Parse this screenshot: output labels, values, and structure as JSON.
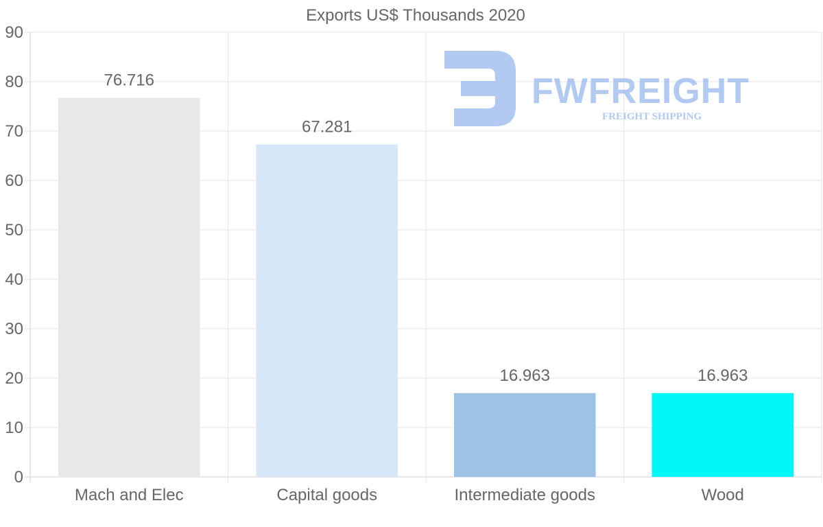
{
  "chart_data": {
    "type": "bar",
    "title": "Exports US$ Thousands 2020",
    "categories": [
      "Mach and Elec",
      "Capital goods",
      "Intermediate goods",
      "Wood"
    ],
    "values": [
      76.716,
      67.281,
      16.963,
      16.963
    ],
    "value_labels": [
      "76.716",
      "67.281",
      "16.963",
      "16.963"
    ],
    "colors": [
      "#e8e8e8",
      "#d6e7f8",
      "#9cc3e6",
      "#00f8f8"
    ],
    "ylim": [
      0,
      90
    ],
    "yticks": [
      0,
      10,
      20,
      30,
      40,
      50,
      60,
      70,
      80,
      90
    ],
    "xlabel": "",
    "ylabel": "",
    "grid": true,
    "legend": "none"
  },
  "watermark": {
    "brand": "FWFREIGHT",
    "tagline": "FREIGHT SHIPPING"
  }
}
